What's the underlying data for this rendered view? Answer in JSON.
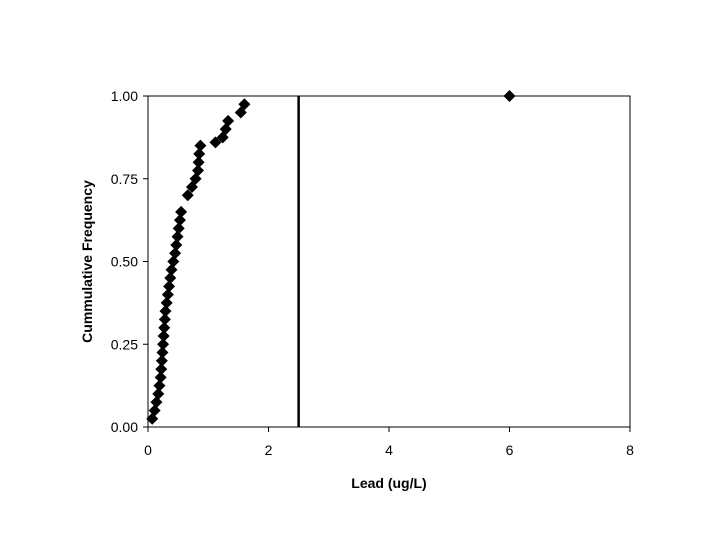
{
  "chart_data": {
    "type": "scatter",
    "title": "",
    "xlabel": "Lead (ug/L)",
    "ylabel": "Cummulative Frequency",
    "xlim": [
      0,
      8
    ],
    "ylim": [
      0,
      1
    ],
    "x_ticks": [
      0,
      2,
      4,
      6,
      8
    ],
    "x_tick_labels": [
      "0",
      "2",
      "4",
      "6",
      "8"
    ],
    "y_ticks": [
      0,
      0.25,
      0.5,
      0.75,
      1.0
    ],
    "y_tick_labels": [
      "0.00",
      "0.25",
      "0.50",
      "0.75",
      "1.00"
    ],
    "grid": false,
    "legend": "none",
    "marker": "diamond",
    "marker_color": "#000000",
    "reference_line": {
      "orientation": "vertical",
      "x": 2.5,
      "color": "#000000"
    },
    "series": [
      {
        "x": [
          0.07,
          0.11,
          0.14,
          0.17,
          0.19,
          0.21,
          0.22,
          0.23,
          0.24,
          0.25,
          0.26,
          0.27,
          0.28,
          0.29,
          0.31,
          0.33,
          0.35,
          0.37,
          0.39,
          0.42,
          0.45,
          0.47,
          0.49,
          0.51,
          0.53,
          0.55,
          0.66,
          0.73,
          0.79,
          0.83,
          0.84,
          0.85,
          0.87,
          1.12,
          1.24,
          1.29,
          1.33,
          1.54,
          1.6,
          6.0
        ],
        "y": [
          0.025,
          0.05,
          0.075,
          0.1,
          0.125,
          0.15,
          0.175,
          0.2,
          0.225,
          0.25,
          0.275,
          0.3,
          0.325,
          0.35,
          0.375,
          0.4,
          0.425,
          0.45,
          0.475,
          0.5,
          0.525,
          0.55,
          0.575,
          0.6,
          0.625,
          0.65,
          0.7,
          0.725,
          0.75,
          0.775,
          0.8,
          0.825,
          0.85,
          0.86,
          0.875,
          0.9,
          0.925,
          0.95,
          0.975,
          1.0
        ]
      }
    ]
  }
}
